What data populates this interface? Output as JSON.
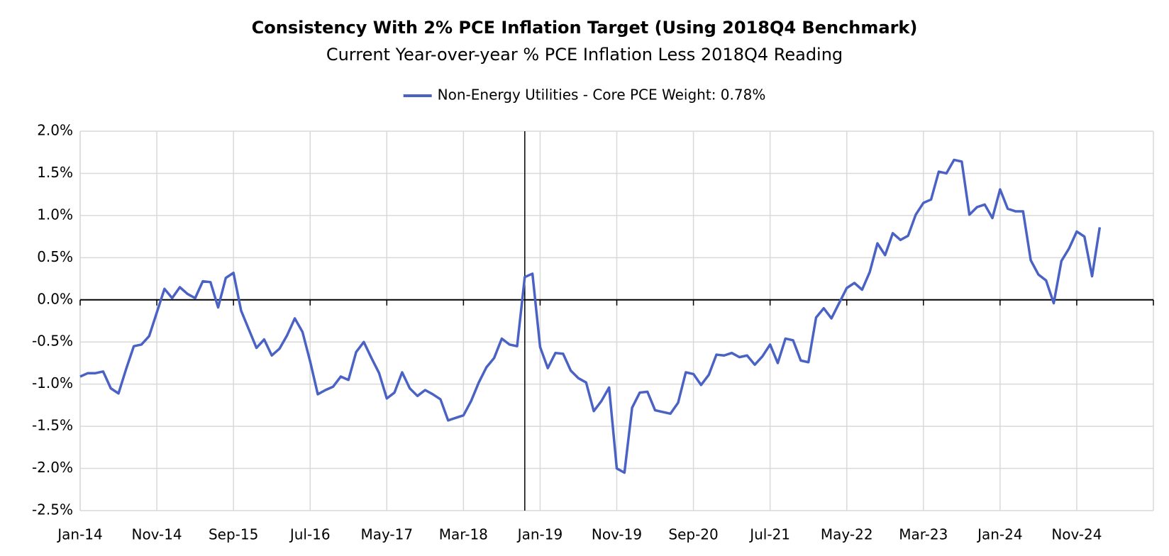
{
  "chart_data": {
    "type": "line",
    "title": "Consistency With 2% PCE Inflation Target (Using 2018Q4 Benchmark)",
    "subtitle": "Current Year-over-year % PCE Inflation Less 2018Q4 Reading",
    "categories": [
      "Jan-14",
      null,
      null,
      null,
      null,
      null,
      null,
      null,
      null,
      null,
      "Nov-14",
      null,
      null,
      null,
      null,
      null,
      null,
      null,
      null,
      null,
      "Sep-15",
      null,
      null,
      null,
      null,
      null,
      null,
      null,
      null,
      null,
      "Jul-16",
      null,
      null,
      null,
      null,
      null,
      null,
      null,
      null,
      null,
      "May-17",
      null,
      null,
      null,
      null,
      null,
      null,
      null,
      null,
      null,
      "Mar-18",
      null,
      null,
      null,
      null,
      null,
      null,
      null,
      null,
      null,
      "Jan-19",
      null,
      null,
      null,
      null,
      null,
      null,
      null,
      null,
      null,
      "Nov-19",
      null,
      null,
      null,
      null,
      null,
      null,
      null,
      null,
      null,
      "Sep-20",
      null,
      null,
      null,
      null,
      null,
      null,
      null,
      null,
      null,
      "Jul-21",
      null,
      null,
      null,
      null,
      null,
      null,
      null,
      null,
      null,
      "May-22",
      null,
      null,
      null,
      null,
      null,
      null,
      null,
      null,
      null,
      "Mar-23",
      null,
      null,
      null,
      null,
      null,
      null,
      null,
      null,
      null,
      "Jan-24",
      null,
      null,
      null,
      null,
      null,
      null,
      null,
      null,
      null,
      "Nov-24",
      null,
      null,
      null,
      null,
      null,
      null,
      null,
      null,
      null,
      null
    ],
    "series": [
      {
        "name": "Non-Energy Utilities - Core PCE Weight: 0.78%",
        "color": "#4a62c4",
        "values": [
          -0.91,
          -0.87,
          -0.87,
          -0.85,
          -1.05,
          -1.11,
          -0.82,
          -0.55,
          -0.53,
          -0.43,
          -0.15,
          0.13,
          0.02,
          0.15,
          0.07,
          0.02,
          0.22,
          0.21,
          -0.09,
          0.26,
          0.32,
          -0.13,
          -0.35,
          -0.57,
          -0.47,
          -0.66,
          -0.58,
          -0.42,
          -0.22,
          -0.38,
          -0.73,
          -1.12,
          -1.07,
          -1.03,
          -0.91,
          -0.95,
          -0.62,
          -0.5,
          -0.69,
          -0.87,
          -1.17,
          -1.1,
          -0.86,
          -1.05,
          -1.14,
          -1.07,
          -1.12,
          -1.18,
          -1.43,
          -1.4,
          -1.37,
          -1.2,
          -0.98,
          -0.8,
          -0.69,
          -0.46,
          -0.53,
          -0.55,
          0.27,
          0.31,
          -0.56,
          -0.81,
          -0.63,
          -0.64,
          -0.84,
          -0.93,
          -0.98,
          -1.32,
          -1.2,
          -1.04,
          -2.0,
          -2.05,
          -1.28,
          -1.1,
          -1.09,
          -1.31,
          -1.33,
          -1.35,
          -1.22,
          -0.86,
          -0.88,
          -1.01,
          -0.89,
          -0.65,
          -0.66,
          -0.63,
          -0.68,
          -0.66,
          -0.77,
          -0.67,
          -0.53,
          -0.75,
          -0.46,
          -0.48,
          -0.72,
          -0.74,
          -0.21,
          -0.1,
          -0.22,
          -0.04,
          0.14,
          0.2,
          0.12,
          0.33,
          0.67,
          0.53,
          0.79,
          0.71,
          0.76,
          1.01,
          1.15,
          1.19,
          1.52,
          1.5,
          1.66,
          1.64,
          1.01,
          1.1,
          1.13,
          0.97,
          1.31,
          1.08,
          1.05,
          1.05,
          0.47,
          0.3,
          0.23,
          -0.04,
          0.46,
          0.61,
          0.81,
          0.75,
          0.28,
          0.86,
          null,
          null,
          null,
          null,
          null,
          null,
          null
        ]
      }
    ],
    "ylim": [
      -2.5,
      2.0
    ],
    "yticks": [
      {
        "value": -2.5,
        "label": "-2.5%"
      },
      {
        "value": -2.0,
        "label": "-2.0%"
      },
      {
        "value": -1.5,
        "label": "-1.5%"
      },
      {
        "value": -1.0,
        "label": "-1.0%"
      },
      {
        "value": -0.5,
        "label": "-0.5%"
      },
      {
        "value": 0.0,
        "label": "0.0%"
      },
      {
        "value": 0.5,
        "label": "0.5%"
      },
      {
        "value": 1.0,
        "label": "1.0%"
      },
      {
        "value": 1.5,
        "label": "1.5%"
      },
      {
        "value": 2.0,
        "label": "2.0%"
      }
    ],
    "reference_line": {
      "x": 58
    },
    "grid": true,
    "legend": "top"
  }
}
